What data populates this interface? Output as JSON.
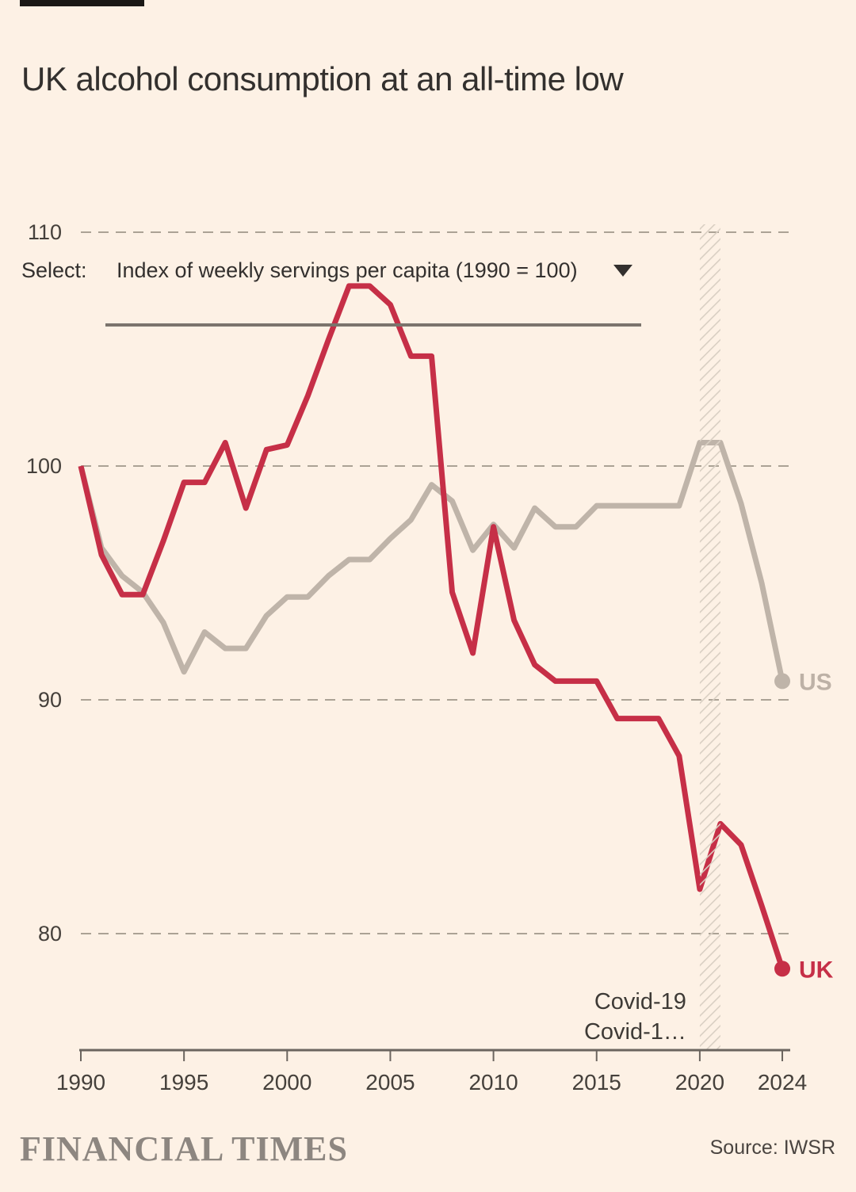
{
  "page": {
    "background": "#fdf1e5"
  },
  "header": {
    "top_bar_color": "#1a1816",
    "title": "UK alcohol consumption at an all-time low",
    "title_color": "#33302e"
  },
  "select_control": {
    "label": "Select:",
    "value": "Index of weekly servings per capita (1990 = 100)",
    "dropdown_icon": "triangle-down",
    "underline_color": "#7b746d",
    "text_color": "#33302e"
  },
  "chart_data": {
    "type": "line",
    "title": "UK alcohol consumption at an all-time low",
    "xlabel": "",
    "ylabel": "",
    "ylim": [
      76,
      112
    ],
    "y_ticks": [
      80,
      90,
      100,
      110
    ],
    "x_ticks": [
      1990,
      1995,
      2000,
      2005,
      2010,
      2015,
      2020,
      2024
    ],
    "grid": "dashed-horizontal",
    "legend": "end-of-line-labels",
    "x": [
      1990,
      1991,
      1992,
      1993,
      1994,
      1995,
      1996,
      1997,
      1998,
      1999,
      2000,
      2001,
      2002,
      2003,
      2004,
      2005,
      2006,
      2007,
      2008,
      2009,
      2010,
      2011,
      2012,
      2013,
      2014,
      2015,
      2016,
      2017,
      2018,
      2019,
      2020,
      2021,
      2022,
      2023,
      2024
    ],
    "series": [
      {
        "name": "US",
        "color": "#bfb4a9",
        "label_color": "#bdb1a6",
        "values": [
          100,
          96.5,
          95.3,
          94.6,
          93.3,
          91.2,
          92.9,
          92.2,
          92.2,
          93.6,
          94.4,
          94.4,
          95.3,
          96,
          96,
          96.9,
          97.7,
          99.2,
          98.5,
          96.4,
          97.5,
          96.5,
          98.2,
          97.4,
          97.4,
          98.3,
          98.3,
          98.3,
          98.3,
          98.3,
          101,
          101,
          98.4,
          95,
          90.8
        ]
      },
      {
        "name": "UK",
        "color": "#c62f47",
        "label_color": "#c62f47",
        "values": [
          100,
          96.2,
          94.5,
          94.5,
          96.8,
          99.3,
          99.3,
          101,
          98.2,
          100.7,
          100.9,
          103,
          105.4,
          107.7,
          107.7,
          106.9,
          104.7,
          104.7,
          94.6,
          92,
          97.4,
          93.4,
          91.5,
          90.8,
          90.8,
          90.8,
          89.2,
          89.2,
          89.2,
          87.6,
          81.9,
          84.7,
          83.8,
          81.2,
          78.5
        ]
      }
    ],
    "annotation": {
      "band_years": [
        2020,
        2021
      ],
      "band_hatch_color": "#d9cfc3",
      "label_line1": "Covid-19",
      "label_line2": "Covid-1…",
      "label_color": "#3e3a36"
    },
    "style": {
      "gridline_color": "#aba295",
      "axis_color": "#6b655f",
      "tick_text_color": "#45403b"
    }
  },
  "footer": {
    "brand": "FINANCIAL TIMES",
    "brand_color": "#8d8680",
    "source": "Source: IWSR",
    "source_color": "#4a4440"
  }
}
